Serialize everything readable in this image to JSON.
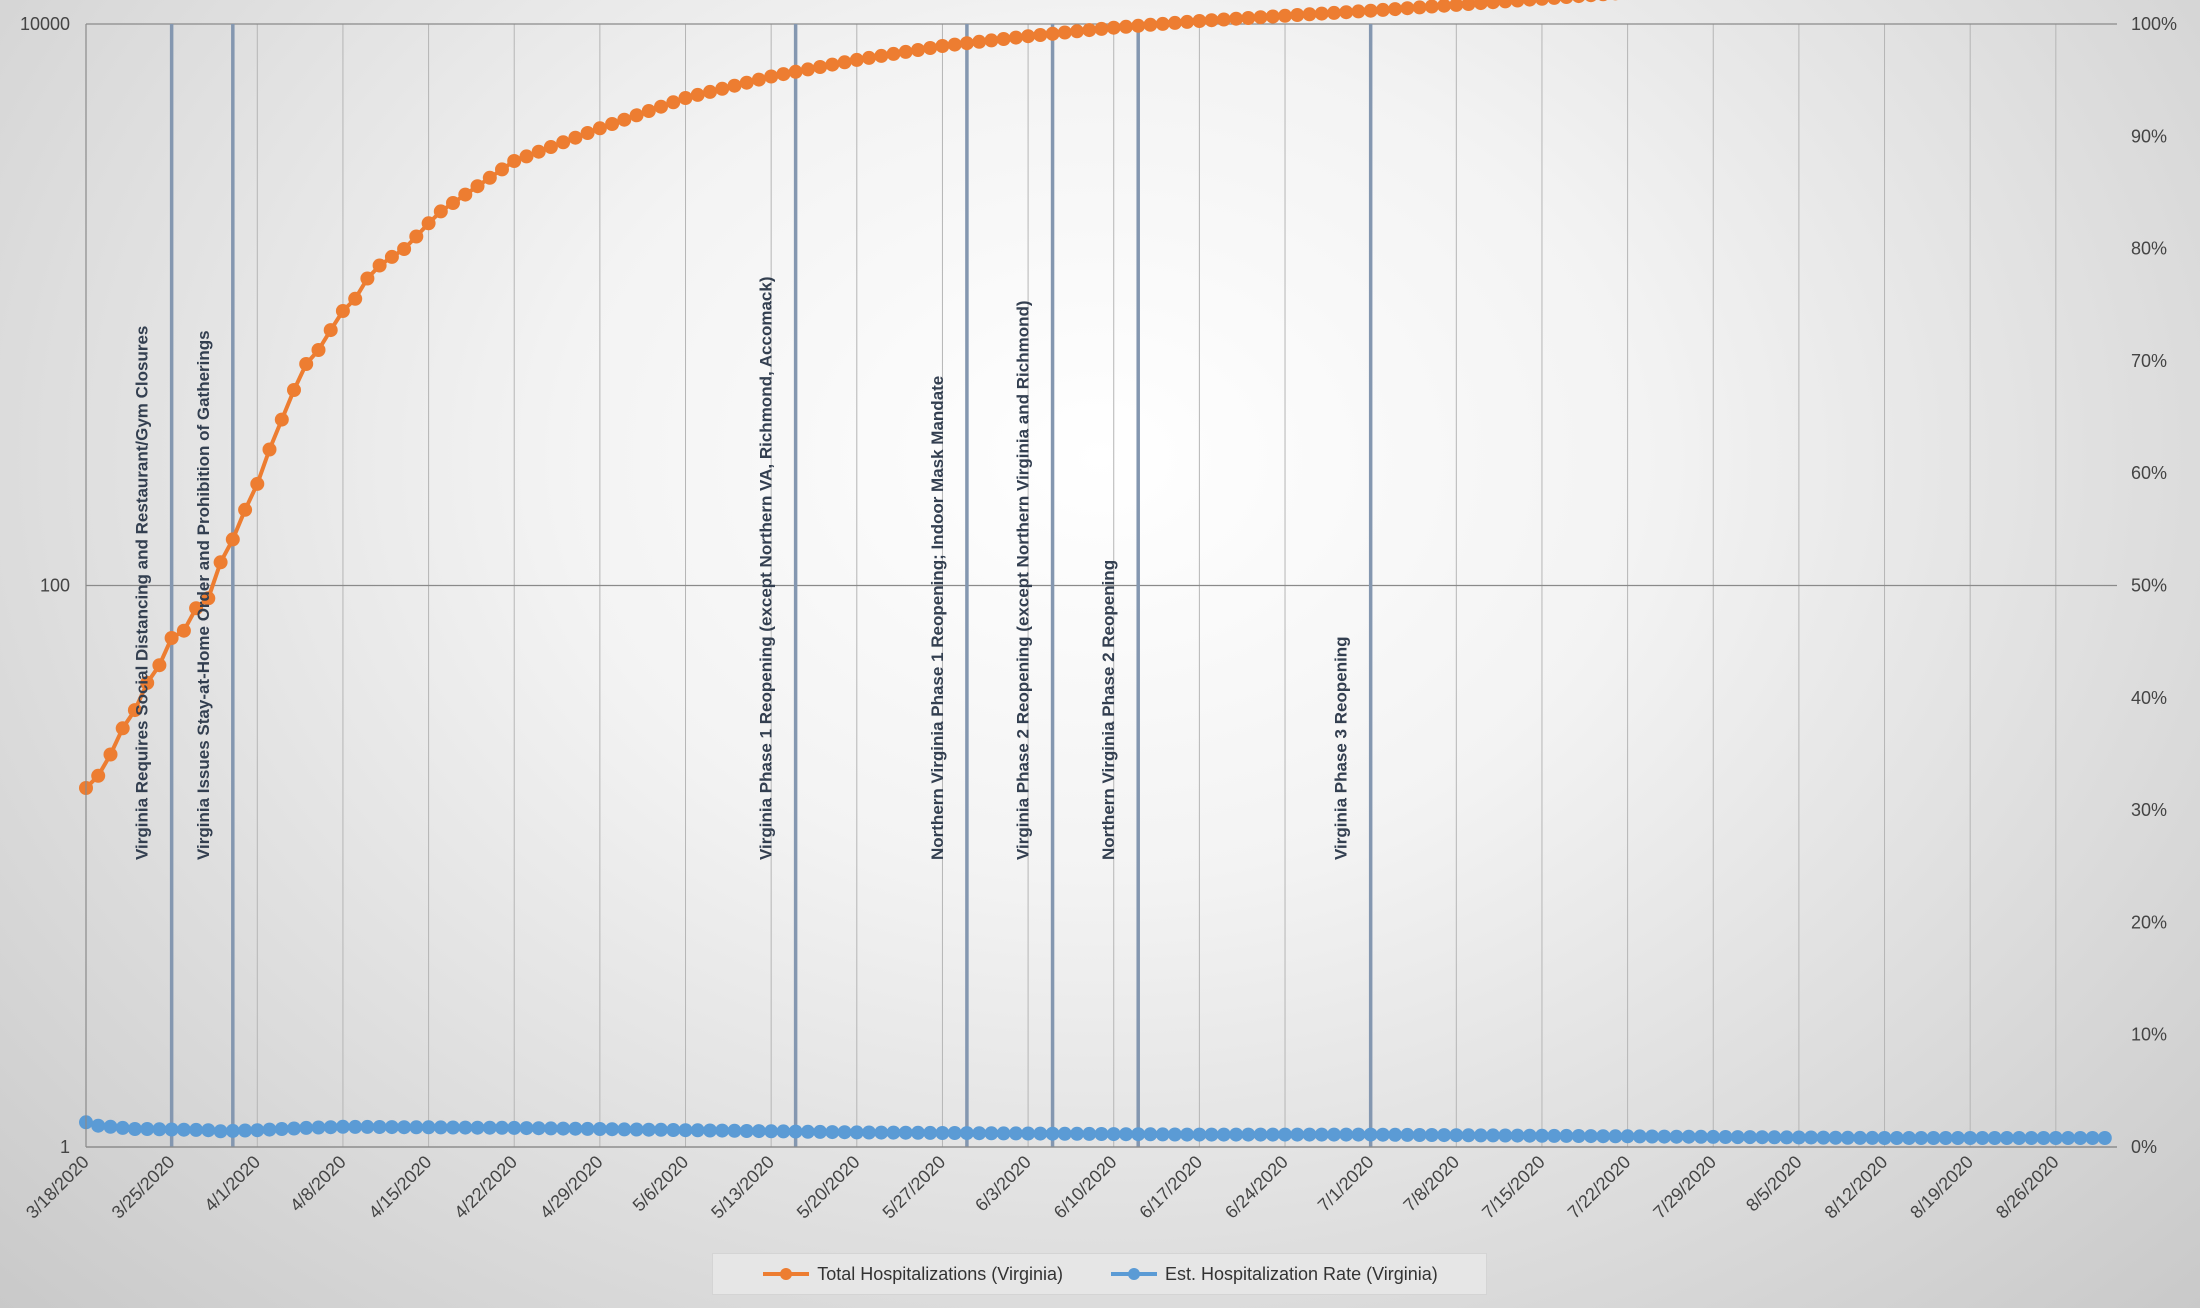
{
  "chart_data": {
    "type": "line",
    "title": "",
    "xlabel": "",
    "ylabel_left": "",
    "ylabel_right": "",
    "start_date": "3/18/2020",
    "x_tick_labels": [
      "3/18/2020",
      "3/25/2020",
      "4/1/2020",
      "4/8/2020",
      "4/15/2020",
      "4/22/2020",
      "4/29/2020",
      "5/6/2020",
      "5/13/2020",
      "5/20/2020",
      "5/27/2020",
      "6/3/2020",
      "6/10/2020",
      "6/17/2020",
      "6/24/2020",
      "7/1/2020",
      "7/8/2020",
      "7/15/2020",
      "7/22/2020",
      "7/29/2020",
      "8/5/2020",
      "8/12/2020",
      "8/19/2020",
      "8/26/2020"
    ],
    "left_axis": {
      "scale": "log",
      "ylim": [
        1,
        10000
      ],
      "tick_labels": [
        "1",
        "100",
        "10000"
      ]
    },
    "right_axis": {
      "scale": "linear",
      "ylim": [
        0,
        1
      ],
      "tick_labels": [
        "0%",
        "10%",
        "20%",
        "30%",
        "40%",
        "50%",
        "60%",
        "70%",
        "80%",
        "90%",
        "100%"
      ]
    },
    "grid": true,
    "legend_position": "bottom",
    "series": [
      {
        "name": "Total Hospitalizations (Virginia)",
        "axis": "left",
        "color": "#ED7D31",
        "anchors": [
          [
            "3/18/2020",
            19
          ],
          [
            "3/19/2020",
            21
          ],
          [
            "3/20/2020",
            25
          ],
          [
            "3/21/2020",
            31
          ],
          [
            "3/22/2020",
            36
          ],
          [
            "3/23/2020",
            45
          ],
          [
            "3/24/2020",
            52
          ],
          [
            "3/25/2020",
            65
          ],
          [
            "3/26/2020",
            69
          ],
          [
            "3/27/2020",
            83
          ],
          [
            "3/28/2020",
            90
          ],
          [
            "3/29/2020",
            121
          ],
          [
            "3/30/2020",
            146
          ],
          [
            "3/31/2020",
            186
          ],
          [
            "4/1/2020",
            230
          ],
          [
            "4/2/2020",
            305
          ],
          [
            "4/3/2020",
            390
          ],
          [
            "4/4/2020",
            497
          ],
          [
            "4/5/2020",
            615
          ],
          [
            "4/6/2020",
            690
          ],
          [
            "4/7/2020",
            812
          ],
          [
            "4/8/2020",
            950
          ],
          [
            "4/9/2020",
            1050
          ],
          [
            "4/10/2020",
            1240
          ],
          [
            "4/11/2020",
            1380
          ],
          [
            "4/12/2020",
            1480
          ],
          [
            "4/13/2020",
            1580
          ],
          [
            "4/14/2020",
            1750
          ],
          [
            "4/15/2020",
            1950
          ],
          [
            "4/16/2020",
            2150
          ],
          [
            "4/22/2020",
            3250
          ],
          [
            "4/29/2020",
            4250
          ],
          [
            "5/6/2020",
            5450
          ],
          [
            "5/13/2020",
            6500
          ],
          [
            "5/20/2020",
            7450
          ],
          [
            "5/27/2020",
            8350
          ],
          [
            "6/3/2020",
            9050
          ],
          [
            "6/10/2020",
            9700
          ],
          [
            "6/17/2020",
            10250
          ],
          [
            "6/24/2020",
            10700
          ],
          [
            "7/1/2020",
            11150
          ],
          [
            "7/8/2020",
            11700
          ],
          [
            "7/15/2020",
            12300
          ],
          [
            "7/22/2020",
            12950
          ],
          [
            "7/29/2020",
            13500
          ],
          [
            "8/5/2020",
            14150
          ],
          [
            "8/12/2020",
            14700
          ],
          [
            "8/19/2020",
            15200
          ],
          [
            "8/26/2020",
            15800
          ],
          [
            "8/31/2020",
            16200
          ]
        ]
      },
      {
        "name": "Est. Hospitalization Rate (Virginia)",
        "axis": "right",
        "color": "#5B9BD5",
        "anchors": [
          [
            "3/18/2020",
            0.022
          ],
          [
            "3/19/2020",
            0.019
          ],
          [
            "3/20/2020",
            0.018
          ],
          [
            "3/21/2020",
            0.017
          ],
          [
            "3/22/2020",
            0.016
          ],
          [
            "3/23/2020",
            0.016
          ],
          [
            "3/28/2020",
            0.015
          ],
          [
            "3/29/2020",
            0.014
          ],
          [
            "4/1/2020",
            0.015
          ],
          [
            "4/5/2020",
            0.017
          ],
          [
            "4/8/2020",
            0.018
          ],
          [
            "4/22/2020",
            0.017
          ],
          [
            "5/6/2020",
            0.015
          ],
          [
            "5/20/2020",
            0.013
          ],
          [
            "6/3/2020",
            0.012
          ],
          [
            "6/17/2020",
            0.011
          ],
          [
            "7/1/2020",
            0.011
          ],
          [
            "7/15/2020",
            0.01
          ],
          [
            "7/29/2020",
            0.009
          ],
          [
            "8/12/2020",
            0.008
          ],
          [
            "8/31/2020",
            0.008
          ]
        ]
      }
    ],
    "annotations": [
      {
        "date": "3/25/2020",
        "label": "Virginia Requires Social Distancing and Restaurant/Gym Closures"
      },
      {
        "date": "3/30/2020",
        "label": "Virginia Issues Stay-at-Home Order and Prohibition of Gatherings"
      },
      {
        "date": "5/15/2020",
        "label": "Virginia Phase 1 Reopening (except Northern VA, Richmond, Accomack)"
      },
      {
        "date": "5/29/2020",
        "label": "Northern Virginia Phase 1 Reopening; Indoor Mask Mandate"
      },
      {
        "date": "6/5/2020",
        "label": "Virginia Phase 2 Reopening (except Northern Virginia and Richmond)"
      },
      {
        "date": "6/12/2020",
        "label": "Northern Virginia Phase 2 Reopening"
      },
      {
        "date": "7/1/2020",
        "label": "Virginia Phase 3 Reopening"
      }
    ]
  },
  "legend": {
    "items": [
      {
        "label": "Total Hospitalizations (Virginia)",
        "color": "#ED7D31"
      },
      {
        "label": "Est. Hospitalization Rate (Virginia)",
        "color": "#5B9BD5"
      }
    ]
  }
}
